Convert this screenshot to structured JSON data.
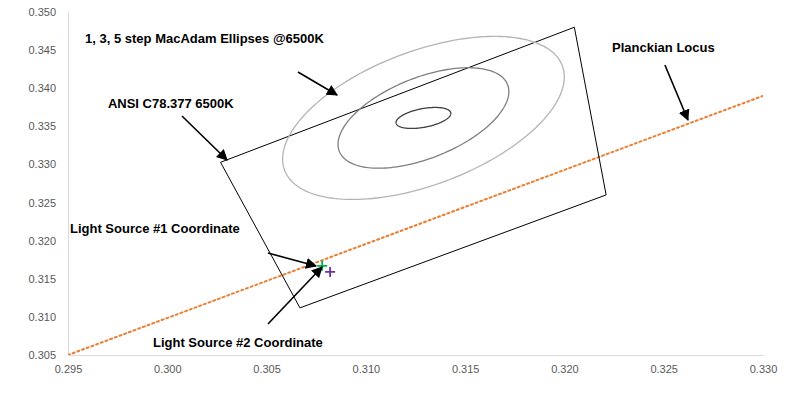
{
  "chart_data": {
    "type": "scatter",
    "xlim": [
      0.295,
      0.33
    ],
    "ylim": [
      0.305,
      0.35
    ],
    "xticks": [
      0.295,
      {
        "value": 0.3,
        "label": "0.300"
      },
      0.305,
      {
        "value": 0.31,
        "label": "0.310"
      },
      0.315,
      {
        "value": 0.32,
        "label": "0.320"
      },
      0.325,
      {
        "value": 0.33,
        "label": "0.330"
      }
    ],
    "yticks": [
      0.305,
      {
        "value": 0.31,
        "label": "0.310"
      },
      0.315,
      {
        "value": 0.32,
        "label": "0.320"
      },
      0.325,
      {
        "value": 0.33,
        "label": "0.330"
      },
      0.335,
      {
        "value": 0.34,
        "label": "0.340"
      },
      0.345,
      {
        "value": 0.35,
        "label": "0.350"
      }
    ],
    "grid": false,
    "series": [
      {
        "type": "line",
        "color": "#ed7d31",
        "line_style": "dotted",
        "x": [
          0.295,
          0.33
        ],
        "y": [
          0.305,
          0.339
        ]
      },
      {
        "type": "polygon",
        "color": "#000000",
        "x": [
          0.3027,
          0.3205,
          0.3221,
          0.3067
        ],
        "y": [
          0.3303,
          0.348,
          0.326,
          0.3112
        ]
      },
      {
        "type": "ellipse",
        "color": "#404040",
        "cx": 0.3129,
        "cy": 0.3361,
        "a": 0.00165,
        "b": 0.00104,
        "angle": 45
      },
      {
        "type": "ellipse",
        "color": "#7f7f7f",
        "cx": 0.3129,
        "cy": 0.3361,
        "a": 0.0071,
        "b": 0.0034,
        "angle": 65
      },
      {
        "type": "ellipse",
        "color": "#b4b4b4",
        "cx": 0.3129,
        "cy": 0.3361,
        "a": 0.0115,
        "b": 0.0057,
        "angle": 65
      },
      {
        "type": "scatter",
        "marker": "plus",
        "color": "#00b050",
        "x": [
          0.3078
        ],
        "y": [
          0.3167
        ]
      },
      {
        "type": "scatter",
        "marker": "plus",
        "color": "#7030a0",
        "x": [
          0.3082
        ],
        "y": [
          0.3159
        ]
      }
    ],
    "annotations": [
      {
        "text": "1, 3, 5 step MacAdam Ellipses @6500K",
        "x": 0.29586,
        "y": 0.34593,
        "arrow_from": [
          0.30658,
          0.34213
        ],
        "arrow_to": [
          0.30855,
          0.33911
        ]
      },
      {
        "text": "ANSI C78.377 6500K",
        "x": 0.29701,
        "y": 0.3374,
        "arrow_from": [
          0.30074,
          0.33636
        ],
        "arrow_to": [
          0.30301,
          0.33058
        ]
      },
      {
        "text": "Planckian Locus",
        "x": 0.3224,
        "y": 0.34475,
        "arrow_from": [
          0.32506,
          0.34305
        ],
        "arrow_to": [
          0.32622,
          0.33583
        ]
      },
      {
        "text": "Light Source #1 Coordinate",
        "x": 0.2951,
        "y": 0.321,
        "arrow_from": [
          0.30507,
          0.31838
        ],
        "arrow_to": [
          0.30749,
          0.31668
        ]
      },
      {
        "text": "Light Source #2 Coordinate",
        "x": 0.29928,
        "y": 0.30605,
        "arrow_from": [
          0.30507,
          0.30907
        ],
        "arrow_to": [
          0.30779,
          0.31654
        ]
      }
    ]
  }
}
